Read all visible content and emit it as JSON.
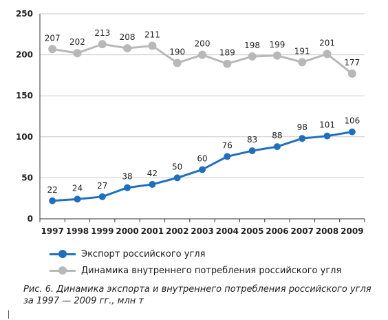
{
  "chart_data": {
    "type": "line",
    "x": [
      "1997",
      "1998",
      "1999",
      "2000",
      "2001",
      "2002",
      "2003",
      "2004",
      "2005",
      "2006",
      "2007",
      "2008",
      "2009"
    ],
    "yticks": [
      "0",
      "50",
      "100",
      "150",
      "200",
      "250"
    ],
    "ylim": [
      0,
      250
    ],
    "grid": true,
    "legend_position": "bottom",
    "series": [
      {
        "name": "Экспорт российского угля",
        "color": "#1f6fc0",
        "values": [
          22,
          24,
          27,
          38,
          42,
          50,
          60,
          76,
          83,
          88,
          98,
          101,
          106
        ],
        "labels": [
          "22",
          "24",
          "27",
          "38",
          "42",
          "50",
          "60",
          "76",
          "83",
          "88",
          "98",
          "101",
          "106"
        ]
      },
      {
        "name": "Динамика  внутреннего потребления российского угля",
        "color": "#b8b8b8",
        "values": [
          207,
          202,
          213,
          208,
          211,
          190,
          200,
          189,
          198,
          199,
          191,
          201,
          177
        ],
        "labels": [
          "207",
          "202",
          "213",
          "208",
          "211",
          "190",
          "200",
          "189",
          "198",
          "199",
          "191",
          "201",
          "177"
        ]
      }
    ]
  },
  "caption": "Рис. 6. Динамика экспорта и внутреннего потребления российского угля за 1997 — 2009 гг., млн т"
}
